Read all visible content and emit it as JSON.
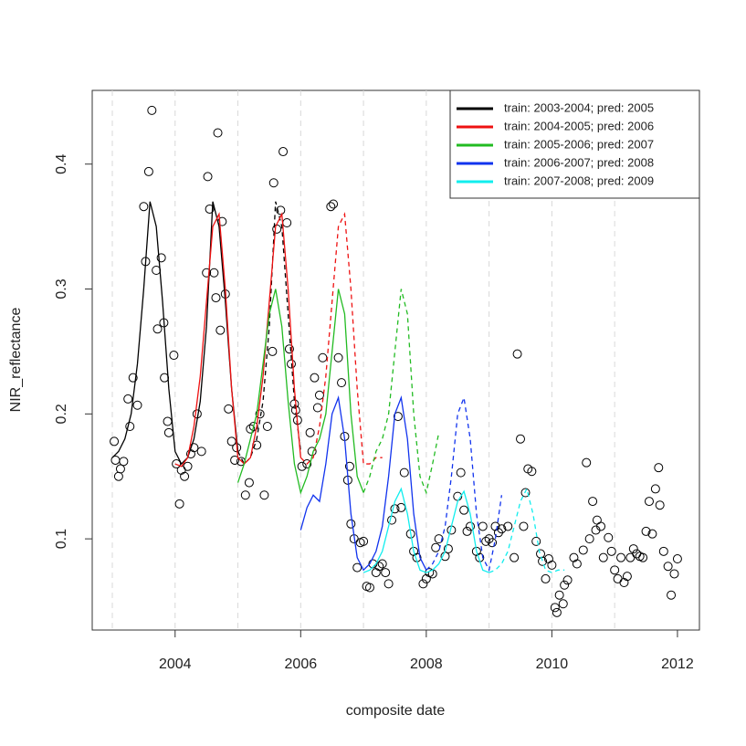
{
  "chart_data": {
    "type": "line",
    "xlabel": "composite date",
    "ylabel": "NIR_reflectance",
    "xlim": [
      2002.68,
      2012.35
    ],
    "ylim": [
      0.027,
      0.459
    ],
    "xticks": [
      2004,
      2006,
      2008,
      2010,
      2012
    ],
    "yticks": [
      0.1,
      0.2,
      0.3,
      0.4
    ],
    "vgrid": [
      2003,
      2004,
      2005,
      2006,
      2007,
      2008,
      2009,
      2010,
      2011
    ],
    "legend": "topright",
    "points": {
      "color": "#000000",
      "x": [
        2003.03,
        2003.05,
        2003.1,
        2003.13,
        2003.18,
        2003.25,
        2003.28,
        2003.33,
        2003.4,
        2003.5,
        2003.53,
        2003.58,
        2003.63,
        2003.7,
        2003.72,
        2003.78,
        2003.82,
        2003.83,
        2003.88,
        2003.9,
        2003.98,
        2004.02,
        2004.07,
        2004.1,
        2004.15,
        2004.2,
        2004.25,
        2004.3,
        2004.35,
        2004.42,
        2004.5,
        2004.52,
        2004.55,
        2004.62,
        2004.65,
        2004.68,
        2004.72,
        2004.75,
        2004.8,
        2004.85,
        2004.9,
        2004.95,
        2004.98,
        2005.05,
        2005.12,
        2005.18,
        2005.2,
        2005.25,
        2005.3,
        2005.35,
        2005.42,
        2005.47,
        2005.55,
        2005.57,
        2005.62,
        2005.68,
        2005.72,
        2005.78,
        2005.82,
        2005.85,
        2005.9,
        2005.92,
        2005.95,
        2006.02,
        2006.1,
        2006.15,
        2006.18,
        2006.22,
        2006.27,
        2006.3,
        2006.35,
        2006.48,
        2006.52,
        2006.6,
        2006.65,
        2006.7,
        2006.75,
        2006.78,
        2006.8,
        2006.85,
        2006.9,
        2006.95,
        2007.0,
        2007.05,
        2007.1,
        2007.15,
        2007.2,
        2007.25,
        2007.3,
        2007.35,
        2007.4,
        2007.45,
        2007.5,
        2007.55,
        2007.6,
        2007.65,
        2007.75,
        2007.8,
        2007.85,
        2007.95,
        2008.0,
        2008.05,
        2008.1,
        2008.15,
        2008.2,
        2008.3,
        2008.35,
        2008.4,
        2008.5,
        2008.55,
        2008.6,
        2008.65,
        2008.7,
        2008.8,
        2008.85,
        2008.9,
        2008.95,
        2009.0,
        2009.05,
        2009.1,
        2009.15,
        2009.2,
        2009.3,
        2009.4,
        2009.45,
        2009.5,
        2009.55,
        2009.58,
        2009.62,
        2009.68,
        2009.75,
        2009.82,
        2009.85,
        2009.9,
        2009.95,
        2010.0,
        2010.05,
        2010.08,
        2010.12,
        2010.18,
        2010.2,
        2010.25,
        2010.35,
        2010.4,
        2010.5,
        2010.55,
        2010.6,
        2010.65,
        2010.7,
        2010.72,
        2010.78,
        2010.82,
        2010.9,
        2010.95,
        2011.0,
        2011.05,
        2011.1,
        2011.15,
        2011.2,
        2011.25,
        2011.3,
        2011.35,
        2011.4,
        2011.45,
        2011.5,
        2011.55,
        2011.6,
        2011.65,
        2011.7,
        2011.72,
        2011.78,
        2011.85,
        2011.9,
        2011.95,
        2012.0
      ],
      "values": [
        0.178,
        0.163,
        0.15,
        0.156,
        0.162,
        0.212,
        0.19,
        0.229,
        0.207,
        0.366,
        0.322,
        0.394,
        0.443,
        0.315,
        0.268,
        0.325,
        0.273,
        0.229,
        0.194,
        0.185,
        0.247,
        0.16,
        0.128,
        0.155,
        0.15,
        0.158,
        0.168,
        0.173,
        0.2,
        0.17,
        0.313,
        0.39,
        0.364,
        0.313,
        0.293,
        0.425,
        0.267,
        0.354,
        0.296,
        0.204,
        0.178,
        0.163,
        0.173,
        0.162,
        0.135,
        0.145,
        0.188,
        0.19,
        0.175,
        0.2,
        0.135,
        0.19,
        0.25,
        0.385,
        0.348,
        0.363,
        0.41,
        0.353,
        0.252,
        0.24,
        0.208,
        0.203,
        0.195,
        0.158,
        0.16,
        0.185,
        0.17,
        0.229,
        0.205,
        0.215,
        0.245,
        0.366,
        0.368,
        0.245,
        0.225,
        0.182,
        0.147,
        0.158,
        0.112,
        0.1,
        0.077,
        0.097,
        0.098,
        0.062,
        0.061,
        0.08,
        0.073,
        0.078,
        0.08,
        0.073,
        0.064,
        0.115,
        0.124,
        0.198,
        0.125,
        0.153,
        0.104,
        0.09,
        0.085,
        0.064,
        0.068,
        0.073,
        0.072,
        0.093,
        0.1,
        0.086,
        0.092,
        0.107,
        0.134,
        0.153,
        0.123,
        0.106,
        0.11,
        0.09,
        0.085,
        0.11,
        0.098,
        0.1,
        0.097,
        0.11,
        0.105,
        0.108,
        0.11,
        0.085,
        0.248,
        0.18,
        0.11,
        0.137,
        0.156,
        0.154,
        0.098,
        0.088,
        0.082,
        0.068,
        0.084,
        0.079,
        0.045,
        0.041,
        0.055,
        0.048,
        0.063,
        0.067,
        0.085,
        0.08,
        0.091,
        0.161,
        0.1,
        0.13,
        0.107,
        0.115,
        0.11,
        0.085,
        0.101,
        0.09,
        0.075,
        0.068,
        0.085,
        0.065,
        0.07,
        0.085,
        0.092,
        0.088,
        0.086,
        0.085,
        0.106,
        0.13,
        0.104,
        0.14,
        0.157,
        0.127,
        0.09,
        0.078,
        0.055,
        0.072,
        0.084
      ]
    },
    "series": [
      {
        "name": "train: 2003-2004; pred: 2005",
        "color": "#000000",
        "x": [
          2003.0,
          2003.1,
          2003.2,
          2003.3,
          2003.4,
          2003.5,
          2003.6,
          2003.7,
          2003.8,
          2003.9,
          2004.0,
          2004.1,
          2004.2,
          2004.3,
          2004.4,
          2004.5,
          2004.6,
          2004.7,
          2004.8,
          2004.9,
          2005.0
        ],
        "values": [
          0.165,
          0.17,
          0.18,
          0.2,
          0.24,
          0.3,
          0.37,
          0.35,
          0.29,
          0.22,
          0.17,
          0.16,
          0.165,
          0.18,
          0.21,
          0.27,
          0.37,
          0.35,
          0.29,
          0.22,
          0.17
        ],
        "pred_x": [
          2005.0,
          2005.1,
          2005.2,
          2005.3,
          2005.4,
          2005.5,
          2005.6,
          2005.7,
          2005.8,
          2005.9,
          2006.0
        ],
        "pred_values": [
          0.17,
          0.16,
          0.165,
          0.18,
          0.21,
          0.27,
          0.37,
          0.35,
          0.28,
          0.21,
          0.17
        ]
      },
      {
        "name": "train: 2004-2005; pred: 2006",
        "color": "#ee1111",
        "x": [
          2004.0,
          2004.1,
          2004.2,
          2004.3,
          2004.4,
          2004.5,
          2004.6,
          2004.7,
          2004.8,
          2004.9,
          2005.0,
          2005.1,
          2005.2,
          2005.3,
          2005.4,
          2005.5,
          2005.6,
          2005.7,
          2005.8,
          2005.9,
          2006.0
        ],
        "values": [
          0.16,
          0.158,
          0.165,
          0.19,
          0.23,
          0.29,
          0.35,
          0.36,
          0.3,
          0.22,
          0.165,
          0.16,
          0.165,
          0.19,
          0.23,
          0.29,
          0.35,
          0.36,
          0.3,
          0.22,
          0.165
        ],
        "pred_x": [
          2006.0,
          2006.1,
          2006.2,
          2006.3,
          2006.4,
          2006.5,
          2006.6,
          2006.7,
          2006.8,
          2006.9,
          2007.0,
          2007.1,
          2007.2,
          2007.3
        ],
        "pred_values": [
          0.165,
          0.16,
          0.165,
          0.19,
          0.23,
          0.29,
          0.35,
          0.36,
          0.3,
          0.22,
          0.16,
          0.16,
          0.165,
          0.165
        ]
      },
      {
        "name": "train: 2005-2006; pred: 2007",
        "color": "#22bb22",
        "x": [
          2005.0,
          2005.1,
          2005.2,
          2005.3,
          2005.4,
          2005.5,
          2005.6,
          2005.7,
          2005.8,
          2005.9,
          2006.0,
          2006.1,
          2006.2,
          2006.3,
          2006.4,
          2006.5,
          2006.6,
          2006.7,
          2006.8,
          2006.9,
          2007.0
        ],
        "values": [
          0.145,
          0.16,
          0.18,
          0.2,
          0.24,
          0.28,
          0.3,
          0.27,
          0.21,
          0.16,
          0.137,
          0.15,
          0.17,
          0.18,
          0.2,
          0.25,
          0.3,
          0.28,
          0.2,
          0.15,
          0.137
        ],
        "pred_x": [
          2007.0,
          2007.1,
          2007.2,
          2007.3,
          2007.4,
          2007.5,
          2007.6,
          2007.7,
          2007.8,
          2007.9,
          2008.0,
          2008.1,
          2008.2
        ],
        "pred_values": [
          0.137,
          0.15,
          0.17,
          0.18,
          0.2,
          0.25,
          0.3,
          0.28,
          0.2,
          0.15,
          0.137,
          0.16,
          0.185
        ]
      },
      {
        "name": "train: 2006-2007; pred: 2008",
        "color": "#1133ee",
        "x": [
          2006.0,
          2006.1,
          2006.2,
          2006.3,
          2006.4,
          2006.5,
          2006.6,
          2006.7,
          2006.8,
          2006.9,
          2007.0,
          2007.1,
          2007.2,
          2007.3,
          2007.4,
          2007.5,
          2007.6,
          2007.7,
          2007.8,
          2007.9,
          2008.0
        ],
        "values": [
          0.107,
          0.125,
          0.135,
          0.13,
          0.16,
          0.2,
          0.213,
          0.18,
          0.12,
          0.085,
          0.075,
          0.08,
          0.09,
          0.11,
          0.15,
          0.2,
          0.213,
          0.18,
          0.12,
          0.085,
          0.075
        ],
        "pred_x": [
          2008.0,
          2008.1,
          2008.2,
          2008.3,
          2008.4,
          2008.5,
          2008.6,
          2008.7,
          2008.8,
          2008.9,
          2009.0,
          2009.1,
          2009.2
        ],
        "pred_values": [
          0.075,
          0.08,
          0.09,
          0.11,
          0.15,
          0.2,
          0.213,
          0.18,
          0.12,
          0.085,
          0.075,
          0.1,
          0.135
        ]
      },
      {
        "name": "train: 2007-2008; pred: 2009",
        "color": "#11eeee",
        "x": [
          2007.0,
          2007.1,
          2007.2,
          2007.3,
          2007.4,
          2007.5,
          2007.6,
          2007.7,
          2007.8,
          2007.9,
          2008.0,
          2008.1,
          2008.2,
          2008.3,
          2008.4,
          2008.5,
          2008.6,
          2008.7,
          2008.8,
          2008.9,
          2009.0
        ],
        "values": [
          0.073,
          0.075,
          0.08,
          0.09,
          0.11,
          0.13,
          0.14,
          0.12,
          0.09,
          0.075,
          0.073,
          0.075,
          0.08,
          0.09,
          0.11,
          0.13,
          0.138,
          0.12,
          0.09,
          0.075,
          0.073
        ],
        "pred_x": [
          2009.0,
          2009.1,
          2009.2,
          2009.3,
          2009.4,
          2009.5,
          2009.6,
          2009.7,
          2009.8,
          2009.9,
          2010.0,
          2010.1,
          2010.2
        ],
        "pred_values": [
          0.073,
          0.075,
          0.08,
          0.09,
          0.11,
          0.13,
          0.14,
          0.12,
          0.09,
          0.075,
          0.073,
          0.075,
          0.075
        ]
      }
    ]
  }
}
